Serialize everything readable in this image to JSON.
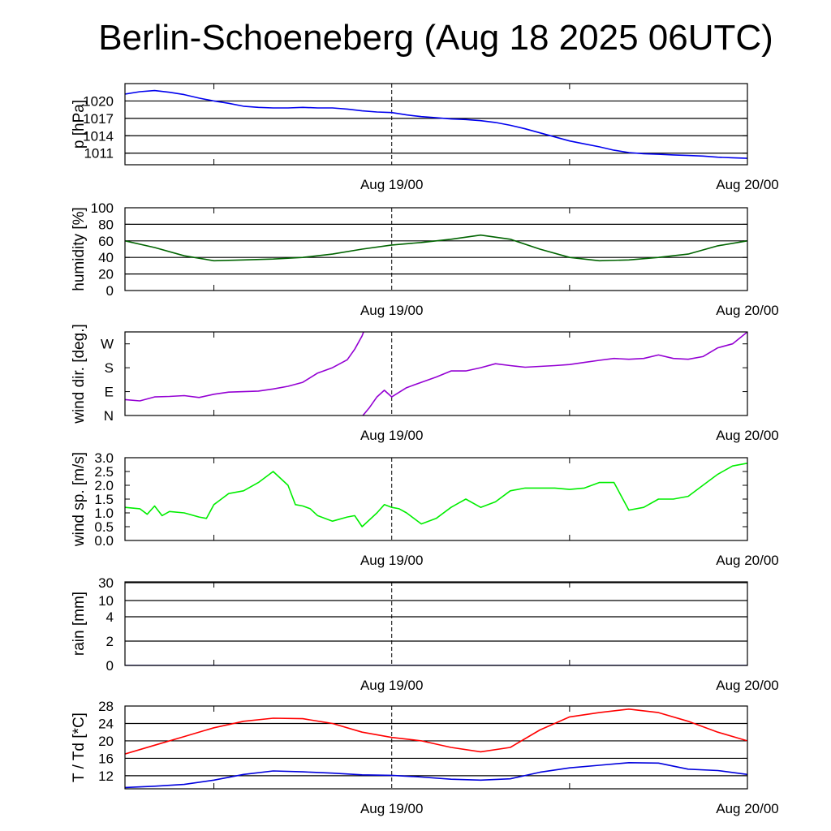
{
  "title": "Berlin-Schoeneberg (Aug 18 2025 06UTC)",
  "colors": {
    "pressure": "#0000ee",
    "humidity": "#006400",
    "wind_dir": "#9400d3",
    "wind_speed": "#00ee00",
    "rain": "#0000aa",
    "temperature": "#ff0000",
    "dewpoint": "#0000dd"
  },
  "chart_data": [
    {
      "type": "line",
      "ylabel": "p [hPa]",
      "x_ticks": [
        "Aug 19/00",
        "Aug 20/00"
      ],
      "ylim": [
        1009,
        1023
      ],
      "y_ticks": [
        1011,
        1014,
        1017,
        1020
      ],
      "y_tick_labels": [
        "1011",
        "1014",
        "1017",
        "1020"
      ],
      "grid": true,
      "series": [
        {
          "x": [
            0,
            1,
            2,
            3,
            4,
            5,
            6,
            7,
            8,
            9,
            10,
            11,
            12,
            13,
            14,
            15,
            16,
            17,
            18,
            19,
            20,
            21,
            22,
            23,
            24,
            25,
            26,
            27,
            28,
            29,
            30,
            31,
            32,
            33,
            34,
            35,
            36,
            37,
            38,
            39,
            40,
            41,
            42
          ],
          "y": [
            1021.2,
            1021.6,
            1021.8,
            1021.5,
            1021.1,
            1020.5,
            1020.0,
            1019.6,
            1019.1,
            1018.9,
            1018.8,
            1018.8,
            1018.9,
            1018.8,
            1018.8,
            1018.6,
            1018.3,
            1018.1,
            1018.0,
            1017.6,
            1017.3,
            1017.1,
            1016.9,
            1016.8,
            1016.6,
            1016.3,
            1015.8,
            1015.2,
            1014.5,
            1013.8,
            1013.1,
            1012.6,
            1012.1,
            1011.5,
            1011.1,
            1010.9,
            1010.8,
            1010.7,
            1010.6,
            1010.5,
            1010.3,
            1010.2,
            1010.1
          ]
        }
      ]
    },
    {
      "type": "line",
      "ylabel": "humidity [%]",
      "x_ticks": [
        "Aug 19/00",
        "Aug 20/00"
      ],
      "ylim": [
        0,
        100
      ],
      "y_ticks": [
        0,
        20,
        40,
        60,
        80,
        100
      ],
      "y_tick_labels": [
        "0",
        "20",
        "40",
        "60",
        "80",
        "100"
      ],
      "grid": true,
      "series": [
        {
          "x": [
            0,
            2,
            4,
            6,
            8,
            10,
            12,
            14,
            16,
            18,
            20,
            22,
            24,
            26,
            28,
            30,
            32,
            34,
            36,
            38,
            40,
            42
          ],
          "y": [
            60,
            52,
            42,
            36,
            37,
            38,
            40,
            44,
            50,
            55,
            58,
            62,
            67,
            62,
            50,
            40,
            36,
            37,
            40,
            44,
            54,
            60
          ]
        }
      ]
    },
    {
      "type": "line",
      "ylabel": "wind dir. [deg.]",
      "x_ticks": [
        "Aug 19/00",
        "Aug 20/00"
      ],
      "ylim": [
        0,
        315
      ],
      "y_ticks": [
        0,
        90,
        180,
        270
      ],
      "y_tick_labels": [
        "N",
        "E",
        "S",
        "W"
      ],
      "grid": false,
      "series": [
        {
          "x": [
            0,
            1,
            2,
            3,
            4,
            5,
            6,
            7,
            8,
            9,
            10,
            11,
            12,
            13,
            14,
            15,
            15.5,
            16,
            16.2
          ],
          "y": [
            60,
            55,
            70,
            72,
            75,
            68,
            80,
            88,
            90,
            92,
            100,
            110,
            125,
            160,
            180,
            210,
            250,
            300,
            330
          ]
        },
        {
          "x": [
            15.9,
            16.5,
            17,
            17.5,
            18,
            19,
            20,
            21,
            22,
            23,
            24,
            25,
            26,
            27,
            28,
            29,
            30,
            31,
            32,
            33,
            34,
            35,
            36,
            37,
            38,
            39,
            40,
            41,
            42
          ],
          "y": [
            -10,
            30,
            70,
            95,
            70,
            105,
            125,
            145,
            168,
            168,
            180,
            195,
            188,
            182,
            185,
            188,
            192,
            200,
            208,
            215,
            212,
            215,
            228,
            215,
            212,
            222,
            255,
            270,
            315
          ]
        }
      ]
    },
    {
      "type": "line",
      "ylabel": "wind sp. [m/s]",
      "x_ticks": [
        "Aug 19/00",
        "Aug 20/00"
      ],
      "ylim": [
        0,
        3.0
      ],
      "y_ticks": [
        0,
        0.5,
        1.0,
        1.5,
        2.0,
        2.5,
        3.0
      ],
      "y_tick_labels": [
        "0.0",
        "0.5",
        "1.0",
        "1.5",
        "2.0",
        "2.5",
        "3.0"
      ],
      "grid": false,
      "series": [
        {
          "x": [
            0,
            1,
            1.5,
            2,
            2.5,
            3,
            4,
            5,
            5.5,
            6,
            6.5,
            7,
            8,
            9,
            10,
            11,
            11.5,
            12,
            12.5,
            13,
            14,
            15,
            15.5,
            16,
            17,
            17.5,
            18,
            18.5,
            19,
            20,
            21,
            22,
            22.5,
            23,
            24,
            25,
            26,
            27,
            28,
            29,
            30,
            31,
            32,
            33,
            34,
            35,
            36,
            37,
            38,
            39,
            40,
            41,
            42
          ],
          "y": [
            1.2,
            1.15,
            0.95,
            1.25,
            0.9,
            1.05,
            1.0,
            0.85,
            0.8,
            1.3,
            1.5,
            1.7,
            1.8,
            2.1,
            2.5,
            2.0,
            1.3,
            1.25,
            1.15,
            0.9,
            0.7,
            0.85,
            0.9,
            0.5,
            1.0,
            1.3,
            1.2,
            1.15,
            1.0,
            0.6,
            0.8,
            1.2,
            1.35,
            1.5,
            1.2,
            1.4,
            1.8,
            1.9,
            1.9,
            1.9,
            1.85,
            1.9,
            2.1,
            2.1,
            1.1,
            1.2,
            1.5,
            1.5,
            1.6,
            2.0,
            2.4,
            2.7,
            2.8
          ]
        }
      ]
    },
    {
      "type": "line",
      "ylabel": "rain [mm]",
      "x_ticks": [
        "Aug 19/00",
        "Aug 20/00"
      ],
      "ylim": [
        0,
        30
      ],
      "y_ticks": [
        0,
        2,
        4,
        10,
        30
      ],
      "y_tick_labels": [
        "0",
        "2",
        "4",
        "10",
        "30"
      ],
      "grid": true,
      "series": [
        {
          "x": [
            0,
            42
          ],
          "y": [
            0,
            0
          ]
        }
      ]
    },
    {
      "type": "line",
      "ylabel": "T / Td [*C]",
      "x_ticks": [
        "Aug 19/00",
        "Aug 20/00"
      ],
      "ylim": [
        9,
        28
      ],
      "y_ticks": [
        12,
        16,
        20,
        24,
        28
      ],
      "y_tick_labels": [
        "12",
        "16",
        "20",
        "24",
        "28"
      ],
      "grid": true,
      "series": [
        {
          "x": [
            0,
            2,
            4,
            6,
            8,
            10,
            12,
            14,
            16,
            18,
            20,
            22,
            24,
            26,
            28,
            30,
            32,
            34,
            36,
            38,
            40,
            42
          ],
          "y": [
            17,
            19,
            21,
            23,
            24.5,
            25.2,
            25.1,
            24,
            22,
            20.8,
            20.0,
            18.5,
            17.5,
            18.5,
            22.5,
            25.5,
            26.5,
            27.3,
            26.5,
            24.5,
            22,
            20
          ]
        },
        {
          "x": [
            0,
            2,
            4,
            6,
            8,
            10,
            12,
            14,
            16,
            18,
            20,
            22,
            24,
            26,
            28,
            30,
            32,
            34,
            36,
            38,
            40,
            42
          ],
          "y": [
            9.3,
            9.6,
            10,
            11,
            12.3,
            13.1,
            12.9,
            12.6,
            12.2,
            12.1,
            11.7,
            11.2,
            11.0,
            11.3,
            12.8,
            13.8,
            14.4,
            15.0,
            14.9,
            13.5,
            13.2,
            12.3
          ]
        }
      ]
    }
  ]
}
